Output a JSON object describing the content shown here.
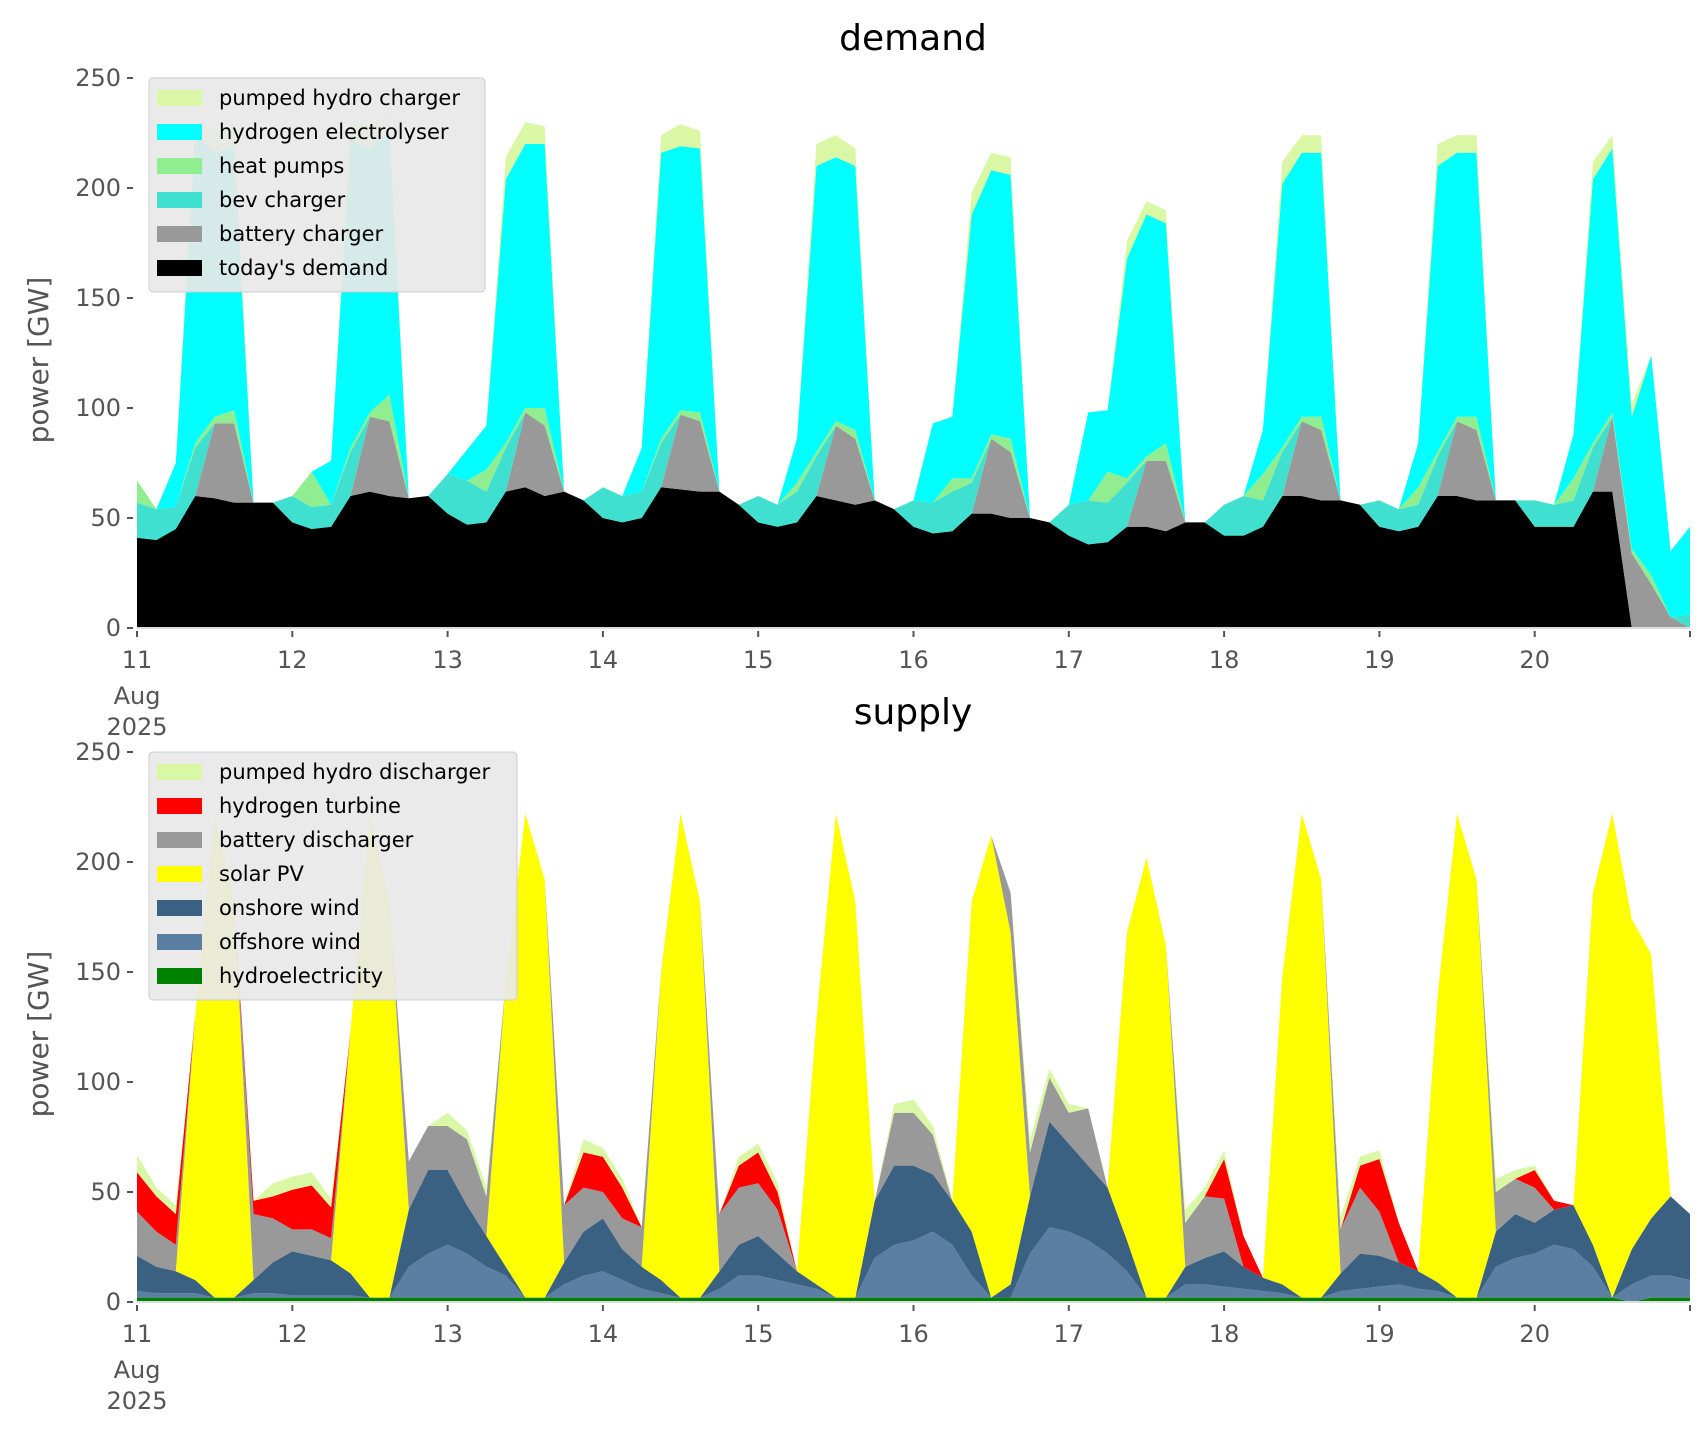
{
  "chart_data": [
    {
      "type": "area",
      "stacked": true,
      "title": "demand",
      "xlabel": "",
      "ylabel": "power [GW]",
      "ylim": [
        0,
        250
      ],
      "xlim_days": [
        11,
        21
      ],
      "x_ticks": [
        "11",
        "12",
        "13",
        "14",
        "15",
        "16",
        "17",
        "18",
        "19",
        "20"
      ],
      "x_tick_sub": [
        "Aug",
        "2025"
      ],
      "y_ticks": [
        0,
        50,
        100,
        150,
        200,
        250
      ],
      "legend_position": "top-left",
      "x_resolution_hours": 3,
      "series": [
        {
          "name": "today's demand",
          "color": "#000000",
          "values": [
            41,
            40,
            45,
            60,
            59,
            57,
            57,
            57,
            48,
            45,
            46,
            60,
            62,
            60,
            59,
            60,
            52,
            47,
            48,
            62,
            64,
            60,
            62,
            58,
            50,
            48,
            50,
            64,
            63,
            62,
            62,
            56,
            48,
            46,
            48,
            60,
            58,
            56,
            58,
            54,
            46,
            43,
            44,
            52,
            52,
            50,
            50,
            48,
            42,
            38,
            39,
            46,
            46,
            44,
            48,
            48,
            42,
            42,
            46,
            60,
            60,
            58,
            58,
            56,
            46,
            44,
            46,
            60,
            60,
            58,
            58,
            58,
            46,
            46,
            46,
            62,
            62,
            0,
            0,
            0,
            0
          ]
        },
        {
          "name": "battery charger",
          "color": "#999999",
          "values": [
            0,
            0,
            0,
            0,
            34,
            36,
            0,
            0,
            0,
            0,
            0,
            0,
            34,
            34,
            0,
            0,
            0,
            0,
            0,
            0,
            34,
            32,
            0,
            0,
            0,
            0,
            0,
            0,
            34,
            32,
            0,
            0,
            0,
            0,
            0,
            0,
            34,
            30,
            0,
            0,
            0,
            0,
            0,
            0,
            34,
            30,
            0,
            0,
            0,
            0,
            0,
            0,
            30,
            32,
            0,
            0,
            0,
            0,
            0,
            0,
            34,
            32,
            0,
            0,
            0,
            0,
            0,
            0,
            34,
            32,
            0,
            0,
            0,
            0,
            0,
            0,
            34,
            34,
            20,
            5,
            0
          ]
        },
        {
          "name": "bev charger",
          "color": "#40E0D0",
          "values": [
            16,
            14,
            10,
            22,
            0,
            0,
            0,
            0,
            12,
            10,
            10,
            20,
            0,
            0,
            0,
            0,
            18,
            20,
            14,
            20,
            0,
            0,
            0,
            0,
            14,
            12,
            12,
            20,
            0,
            0,
            0,
            0,
            12,
            10,
            14,
            18,
            0,
            0,
            0,
            0,
            12,
            14,
            18,
            14,
            0,
            0,
            0,
            0,
            14,
            20,
            18,
            20,
            0,
            0,
            0,
            0,
            14,
            18,
            12,
            20,
            0,
            0,
            0,
            0,
            12,
            10,
            10,
            18,
            0,
            0,
            0,
            0,
            12,
            10,
            12,
            20,
            0,
            0,
            0,
            0,
            6
          ]
        },
        {
          "name": "heat pumps",
          "color": "#90EE90",
          "values": [
            10,
            0,
            0,
            2,
            3,
            6,
            0,
            0,
            0,
            16,
            0,
            2,
            2,
            12,
            0,
            0,
            0,
            0,
            10,
            2,
            2,
            8,
            0,
            0,
            0,
            0,
            0,
            2,
            2,
            4,
            0,
            0,
            0,
            0,
            4,
            2,
            2,
            4,
            0,
            0,
            0,
            0,
            6,
            2,
            2,
            6,
            0,
            0,
            0,
            0,
            14,
            2,
            2,
            8,
            0,
            0,
            0,
            0,
            12,
            2,
            2,
            6,
            0,
            0,
            0,
            0,
            8,
            2,
            2,
            6,
            0,
            0,
            0,
            0,
            10,
            2,
            2,
            2,
            4,
            0,
            0
          ]
        },
        {
          "name": "hydrogen electrolyser",
          "color": "#00FFFF",
          "values": [
            0,
            0,
            20,
            140,
            120,
            120,
            0,
            0,
            0,
            0,
            20,
            140,
            120,
            120,
            0,
            0,
            0,
            14,
            20,
            120,
            120,
            120,
            0,
            0,
            0,
            0,
            20,
            130,
            120,
            120,
            0,
            0,
            0,
            0,
            20,
            130,
            120,
            120,
            0,
            0,
            0,
            36,
            28,
            120,
            120,
            120,
            0,
            0,
            0,
            40,
            28,
            100,
            110,
            100,
            0,
            0,
            0,
            0,
            20,
            120,
            120,
            120,
            0,
            0,
            0,
            0,
            20,
            130,
            120,
            120,
            0,
            0,
            0,
            0,
            20,
            120,
            120,
            60,
            100,
            30,
            40
          ]
        },
        {
          "name": "pumped hydro charger",
          "color": "#DAF7A6",
          "values": [
            0,
            0,
            0,
            8,
            10,
            10,
            0,
            0,
            0,
            0,
            0,
            8,
            10,
            8,
            0,
            0,
            0,
            0,
            0,
            10,
            10,
            8,
            0,
            0,
            0,
            0,
            0,
            8,
            10,
            8,
            0,
            0,
            0,
            0,
            0,
            10,
            10,
            8,
            0,
            0,
            0,
            0,
            0,
            10,
            8,
            8,
            0,
            0,
            0,
            0,
            0,
            8,
            6,
            6,
            0,
            0,
            0,
            0,
            0,
            10,
            8,
            8,
            0,
            0,
            0,
            0,
            0,
            10,
            8,
            8,
            0,
            0,
            0,
            0,
            0,
            8,
            6,
            6,
            0,
            0,
            0
          ]
        }
      ]
    },
    {
      "type": "area",
      "stacked": true,
      "title": "supply",
      "xlabel": "",
      "ylabel": "power [GW]",
      "ylim": [
        0,
        250
      ],
      "xlim_days": [
        11,
        21
      ],
      "x_ticks": [
        "11",
        "12",
        "13",
        "14",
        "15",
        "16",
        "17",
        "18",
        "19",
        "20"
      ],
      "x_tick_sub": [
        "Aug",
        "2025"
      ],
      "y_ticks": [
        0,
        50,
        100,
        150,
        200,
        250
      ],
      "legend_position": "top-left",
      "x_resolution_hours": 3,
      "series": [
        {
          "name": "hydroelectricity",
          "color": "#008000",
          "values": [
            2,
            2,
            2,
            2,
            2,
            2,
            2,
            2,
            2,
            2,
            2,
            2,
            2,
            2,
            2,
            2,
            2,
            2,
            2,
            2,
            2,
            2,
            2,
            2,
            2,
            2,
            2,
            2,
            2,
            2,
            2,
            2,
            2,
            2,
            2,
            2,
            2,
            2,
            2,
            2,
            2,
            2,
            2,
            2,
            2,
            2,
            2,
            2,
            2,
            2,
            2,
            2,
            2,
            2,
            2,
            2,
            2,
            2,
            2,
            2,
            2,
            2,
            2,
            2,
            2,
            2,
            2,
            2,
            2,
            2,
            2,
            2,
            2,
            2,
            2,
            2,
            2,
            0,
            2,
            2,
            2
          ]
        },
        {
          "name": "offshore wind",
          "color": "#5B7FA3",
          "values": [
            3,
            2,
            2,
            2,
            0,
            0,
            2,
            2,
            1,
            1,
            1,
            1,
            0,
            0,
            14,
            20,
            24,
            20,
            14,
            10,
            0,
            0,
            6,
            10,
            12,
            8,
            4,
            2,
            0,
            0,
            4,
            10,
            10,
            8,
            6,
            4,
            0,
            0,
            18,
            24,
            26,
            30,
            24,
            10,
            0,
            0,
            20,
            32,
            30,
            26,
            20,
            12,
            0,
            0,
            6,
            6,
            5,
            4,
            3,
            2,
            0,
            0,
            3,
            4,
            5,
            6,
            4,
            3,
            0,
            0,
            14,
            18,
            20,
            24,
            22,
            14,
            0,
            8,
            10,
            10,
            8
          ]
        },
        {
          "name": "onshore wind",
          "color": "#3B6182",
          "values": [
            16,
            12,
            10,
            6,
            0,
            0,
            6,
            14,
            20,
            18,
            16,
            10,
            0,
            0,
            26,
            38,
            34,
            22,
            14,
            4,
            0,
            0,
            10,
            20,
            24,
            14,
            10,
            6,
            0,
            0,
            8,
            14,
            18,
            12,
            6,
            2,
            0,
            0,
            26,
            36,
            34,
            26,
            20,
            20,
            0,
            6,
            26,
            48,
            40,
            34,
            30,
            14,
            0,
            0,
            8,
            12,
            16,
            10,
            6,
            4,
            0,
            0,
            8,
            16,
            14,
            10,
            8,
            4,
            0,
            0,
            16,
            20,
            14,
            16,
            20,
            10,
            0,
            16,
            26,
            36,
            30
          ]
        },
        {
          "name": "solar PV",
          "color": "#FFFF00",
          "values": [
            0,
            0,
            0,
            120,
            220,
            180,
            0,
            0,
            0,
            0,
            0,
            110,
            220,
            180,
            0,
            0,
            0,
            0,
            0,
            130,
            220,
            190,
            0,
            0,
            0,
            0,
            0,
            140,
            220,
            180,
            0,
            0,
            0,
            0,
            0,
            120,
            220,
            180,
            0,
            0,
            0,
            0,
            0,
            150,
            210,
            160,
            0,
            0,
            0,
            0,
            0,
            140,
            200,
            160,
            0,
            0,
            0,
            0,
            0,
            140,
            220,
            190,
            0,
            0,
            0,
            0,
            0,
            130,
            220,
            190,
            0,
            0,
            0,
            0,
            0,
            160,
            220,
            150,
            120,
            0,
            0
          ]
        },
        {
          "name": "battery discharger",
          "color": "#999999",
          "values": [
            20,
            16,
            12,
            0,
            0,
            0,
            30,
            20,
            10,
            12,
            10,
            0,
            0,
            0,
            22,
            20,
            20,
            30,
            18,
            0,
            0,
            0,
            26,
            20,
            12,
            14,
            18,
            0,
            0,
            0,
            26,
            26,
            24,
            20,
            0,
            0,
            0,
            0,
            0,
            24,
            24,
            18,
            0,
            0,
            0,
            18,
            20,
            20,
            14,
            26,
            0,
            0,
            0,
            0,
            20,
            28,
            24,
            0,
            0,
            0,
            0,
            0,
            20,
            30,
            20,
            0,
            0,
            0,
            0,
            0,
            18,
            16,
            16,
            0,
            0,
            0,
            0,
            0,
            0,
            0,
            0
          ]
        },
        {
          "name": "hydrogen turbine",
          "color": "#FF0000",
          "values": [
            18,
            16,
            14,
            0,
            0,
            0,
            6,
            10,
            18,
            20,
            14,
            0,
            0,
            0,
            0,
            0,
            0,
            0,
            0,
            0,
            0,
            0,
            0,
            16,
            16,
            14,
            0,
            0,
            0,
            0,
            0,
            10,
            14,
            8,
            0,
            0,
            0,
            0,
            0,
            0,
            0,
            0,
            0,
            0,
            0,
            0,
            0,
            0,
            0,
            0,
            0,
            0,
            0,
            0,
            0,
            0,
            18,
            14,
            0,
            0,
            0,
            0,
            0,
            10,
            24,
            18,
            0,
            0,
            0,
            0,
            0,
            0,
            8,
            4,
            0,
            0,
            0,
            0,
            0,
            0,
            0
          ]
        },
        {
          "name": "pumped hydro discharger",
          "color": "#DAF7A6",
          "values": [
            8,
            4,
            4,
            0,
            0,
            0,
            0,
            6,
            6,
            6,
            4,
            0,
            0,
            0,
            0,
            0,
            6,
            4,
            4,
            0,
            0,
            0,
            0,
            6,
            4,
            4,
            0,
            0,
            0,
            0,
            0,
            4,
            4,
            4,
            0,
            0,
            0,
            0,
            0,
            4,
            6,
            4,
            0,
            0,
            0,
            0,
            6,
            4,
            4,
            0,
            0,
            0,
            0,
            0,
            6,
            4,
            4,
            0,
            0,
            0,
            0,
            0,
            6,
            4,
            4,
            0,
            0,
            0,
            0,
            0,
            6,
            4,
            2,
            0,
            0,
            0,
            0,
            0,
            0,
            0,
            0
          ]
        }
      ]
    }
  ]
}
